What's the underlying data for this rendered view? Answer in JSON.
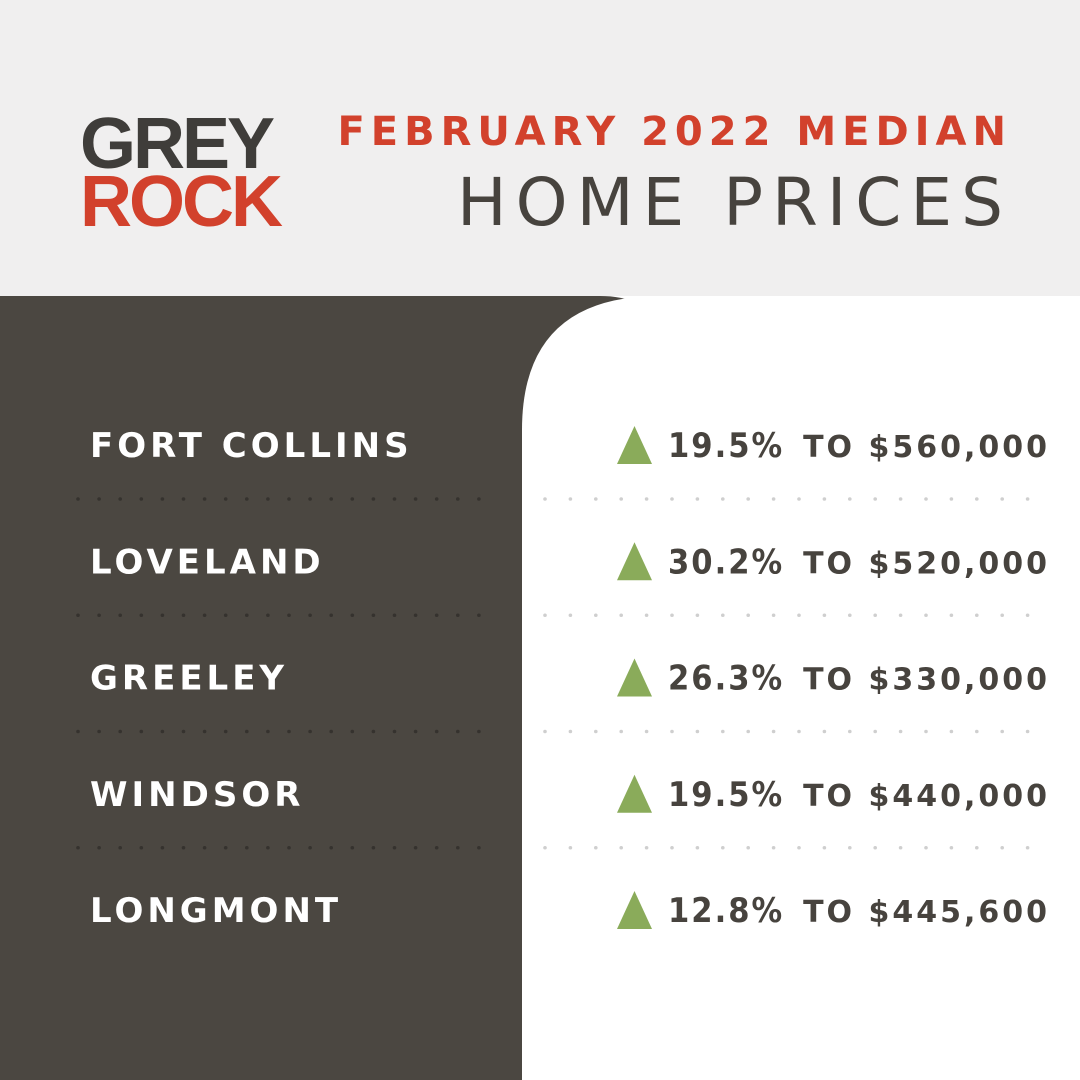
{
  "logo": {
    "line1": "GREY",
    "line2": "ROCK"
  },
  "header": {
    "title": "FEBRUARY 2022 MEDIAN",
    "subtitle": "HOME PRICES"
  },
  "table": {
    "rows": [
      [
        "FORT COLLINS",
        "19.5%",
        "TO $560,000"
      ],
      [
        "LOVELAND",
        "30.2%",
        "TO $520,000"
      ],
      [
        "GREELEY",
        "26.3%",
        "TO $330,000"
      ],
      [
        "WINDSOR",
        "19.5%",
        "TO $440,000"
      ],
      [
        "LONGMONT",
        "12.8%",
        "TO $445,600"
      ]
    ]
  }
}
